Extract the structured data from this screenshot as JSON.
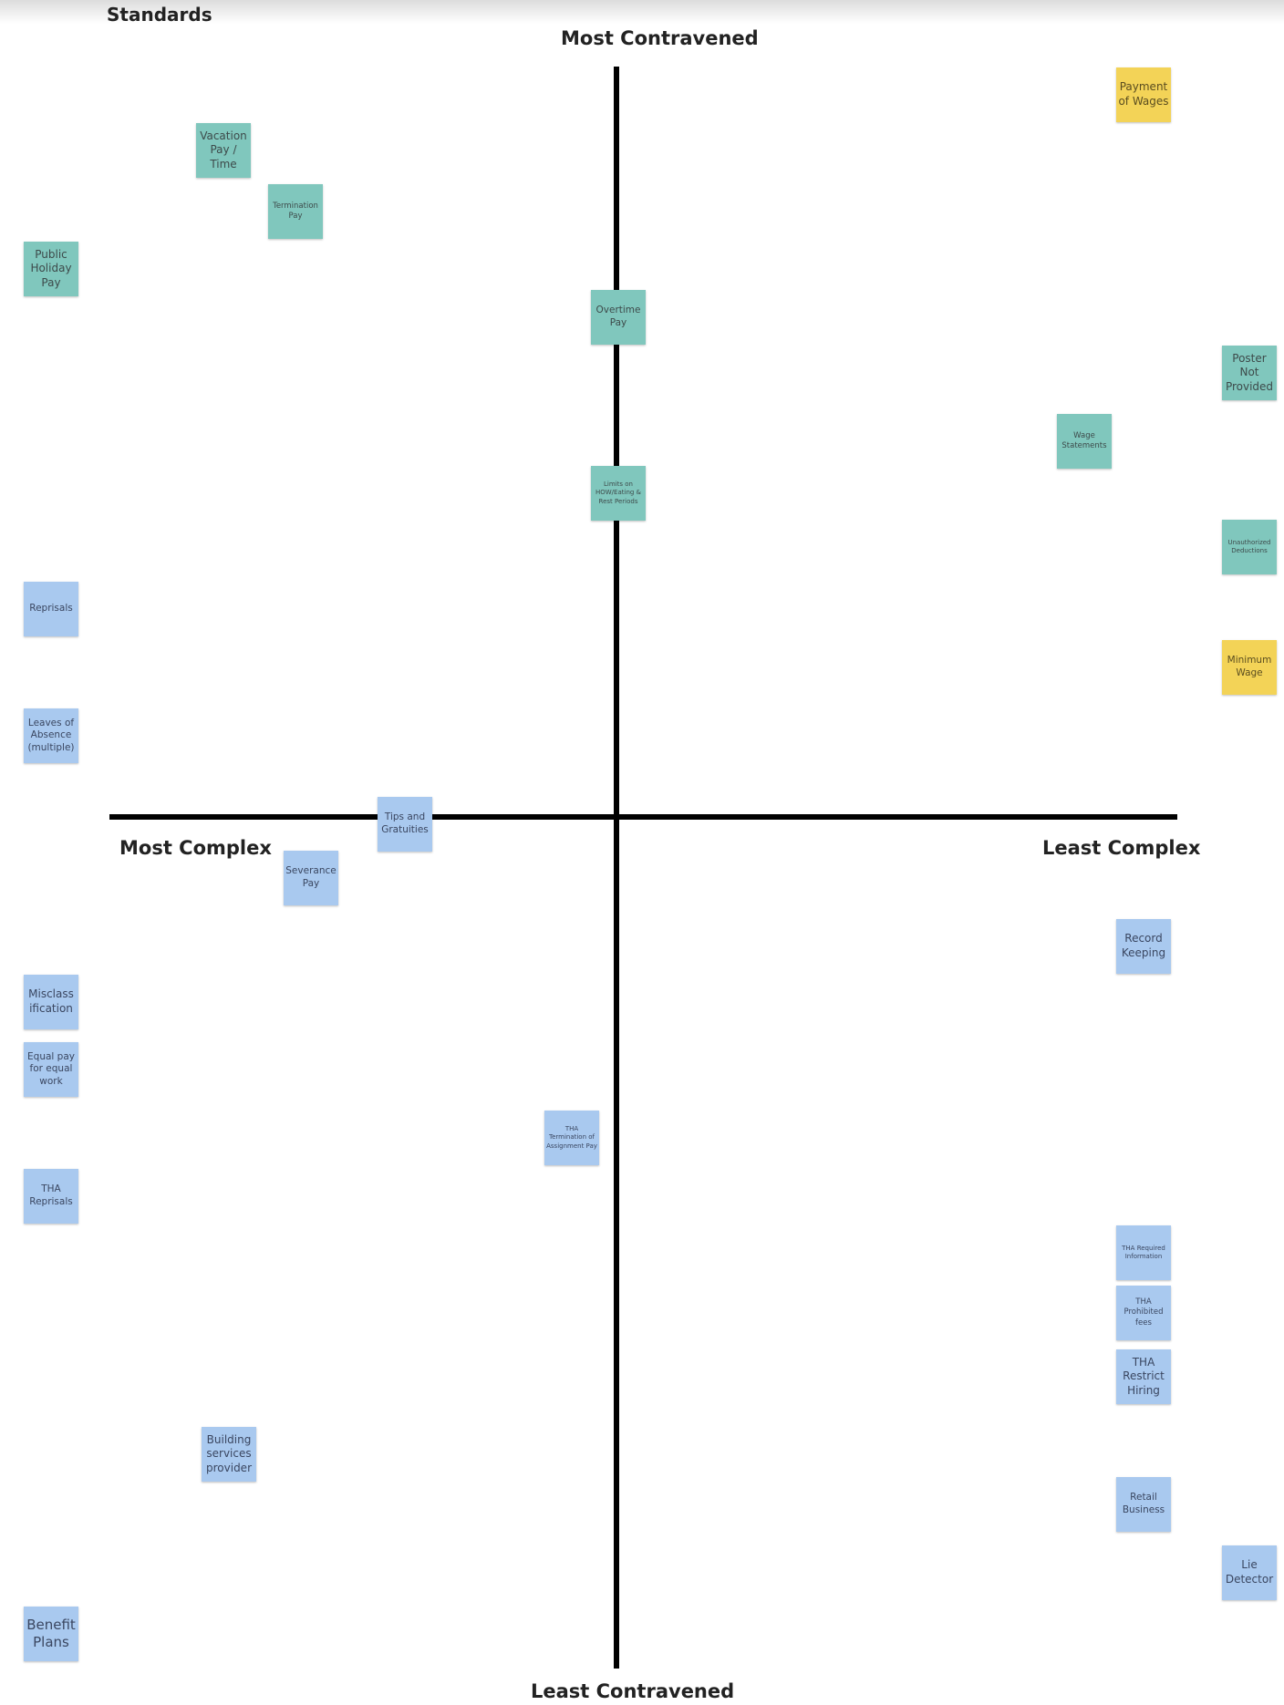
{
  "title": "Standards",
  "axes": {
    "top": "Most Contravened",
    "bottom": "Least Contravened",
    "left": "Most Complex",
    "right": "Least Complex"
  },
  "colors": {
    "teal": "#80c7bd",
    "blue": "#a9c9ef",
    "yellow": "#f3d357",
    "axis": "#000000"
  },
  "notes": {
    "payment_of_wages": "Payment of Wages",
    "vacation_pay": "Vacation Pay / Time",
    "termination_pay": "Termination Pay",
    "public_holiday_pay": "Public Holiday Pay",
    "overtime_pay": "Overtime Pay",
    "poster_not_provided": "Poster Not Provided",
    "wage_statements": "Wage Statements",
    "limits_on_how": "Limits on HOW/Eating & Rest Periods",
    "unauthorized_deductions": "Unauthorized Deductions",
    "reprisals": "Reprisals",
    "minimum_wage": "Minimum Wage",
    "leaves_of_absence": "Leaves of Absence (multiple)",
    "tips_and_gratuities": "Tips and Gratuities",
    "severance_pay": "Severance Pay",
    "record_keeping": "Record Keeping",
    "misclassification": "Misclass ification",
    "equal_pay": "Equal pay for equal work",
    "tha_termination": "THA Termination of Assignment Pay",
    "tha_reprisals": "THA Reprisals",
    "tha_required_information": "THA Required Information",
    "tha_prohibited_fees": "THA Prohibited fees",
    "tha_restrict_hiring": "THA Restrict Hiring",
    "building_services_provider": "Building services provider",
    "retail_business": "Retail Business",
    "lie_detector": "Lie Detector",
    "benefit_plans": "Benefit Plans"
  }
}
